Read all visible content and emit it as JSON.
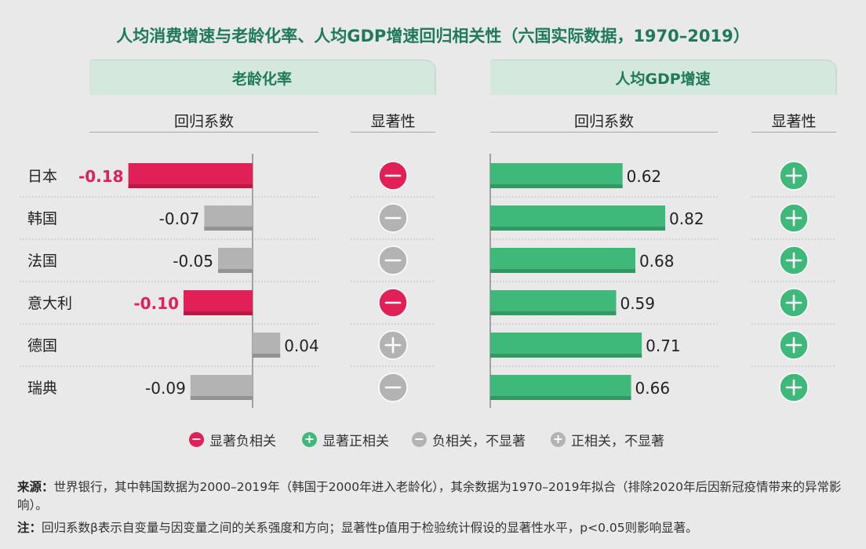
{
  "title": "人均消费增速与老龄化率、人均GDP增速回归相关性（六国实际数据，1970–2019）",
  "panels": [
    {
      "label": "老龄化率",
      "coef_header": "回归系数",
      "sig_header": "显著性"
    },
    {
      "label": "人均GDP增速",
      "coef_header": "回归系数",
      "sig_header": "显著性"
    }
  ],
  "colors": {
    "sig_negative": "#e02057",
    "sig_positive": "#3eb97a",
    "not_significant": "#b3b3b3"
  },
  "chart_data": [
    {
      "type": "bar",
      "orientation": "horizontal",
      "panel": "老龄化率",
      "categories": [
        "日本",
        "韩国",
        "法国",
        "意大利",
        "德国",
        "瑞典"
      ],
      "values": [
        -0.18,
        -0.07,
        -0.05,
        -0.1,
        0.04,
        -0.09
      ],
      "value_labels": [
        "-0.18",
        "-0.07",
        "-0.05",
        "-0.10",
        "0.04",
        "-0.09"
      ],
      "significance": [
        "显著负相关",
        "负相关，不显著",
        "负相关，不显著",
        "显著负相关",
        "正相关，不显著",
        "负相关，不显著"
      ]
    },
    {
      "type": "bar",
      "orientation": "horizontal",
      "panel": "人均GDP增速",
      "categories": [
        "日本",
        "韩国",
        "法国",
        "意大利",
        "德国",
        "瑞典"
      ],
      "values": [
        0.62,
        0.82,
        0.68,
        0.59,
        0.71,
        0.66
      ],
      "value_labels": [
        "0.62",
        "0.82",
        "0.68",
        "0.59",
        "0.71",
        "0.66"
      ],
      "significance": [
        "显著正相关",
        "显著正相关",
        "显著正相关",
        "显著正相关",
        "显著正相关",
        "显著正相关"
      ]
    }
  ],
  "legend": [
    {
      "symbol": "−",
      "label": "显著负相关",
      "color": "#e02057"
    },
    {
      "symbol": "+",
      "label": "显著正相关",
      "color": "#3eb97a"
    },
    {
      "symbol": "−",
      "label": "负相关，不显著",
      "color": "#b3b3b3"
    },
    {
      "symbol": "+",
      "label": "正相关，不显著",
      "color": "#b3b3b3"
    }
  ],
  "notes": {
    "source_label": "来源：",
    "source_text": "世界银行，其中韩国数据为2000–2019年（韩国于2000年进入老龄化），其余数据为1970–2019年拟合（排除2020年后因新冠疫情带来的异常影响）。",
    "note_label": "注：",
    "note_text": "回归系数β表示自变量与因变量之间的关系强度和方向；显著性p值用于检验统计假设的显著性水平，p<0.05则影响显著。"
  }
}
